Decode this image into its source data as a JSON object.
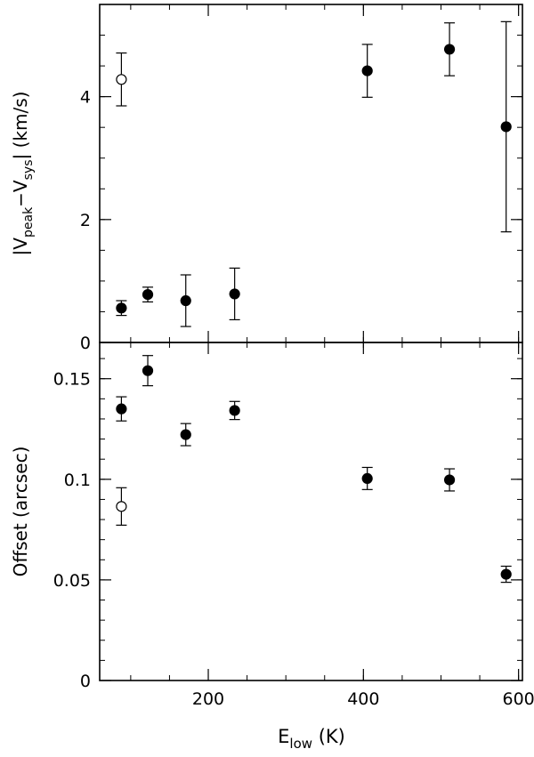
{
  "chart_data": [
    {
      "type": "scatter",
      "panel": "top",
      "xlabel": "",
      "ylabel_parts": {
        "pre": "|V",
        "sub1": "peak",
        "mid": "−V",
        "sub2": "sys",
        "post": "| (km/s)"
      },
      "xlim": [
        60,
        605
      ],
      "ylim": [
        0,
        5.5
      ],
      "yticks": [
        0,
        2,
        4
      ],
      "ytick_labels": [
        "0",
        "2",
        "4"
      ],
      "series": [
        {
          "marker": "filled-circle",
          "points": [
            {
              "x": 88,
              "y": 0.56,
              "err": 0.12
            },
            {
              "x": 122,
              "y": 0.78,
              "err": 0.12
            },
            {
              "x": 171,
              "y": 0.68,
              "err": 0.42
            },
            {
              "x": 234,
              "y": 0.79,
              "err": 0.42
            },
            {
              "x": 405,
              "y": 4.42,
              "err": 0.43
            },
            {
              "x": 511,
              "y": 4.77,
              "err": 0.43
            },
            {
              "x": 584,
              "y": 3.51,
              "err": 1.71
            }
          ]
        },
        {
          "marker": "open-circle",
          "points": [
            {
              "x": 88,
              "y": 4.28,
              "err": 0.43
            }
          ]
        }
      ]
    },
    {
      "type": "scatter",
      "panel": "bottom",
      "xlabel_parts": {
        "pre": "E",
        "sub": "low",
        "post": " (K)"
      },
      "ylabel": "Offset (arcsec)",
      "xlim": [
        60,
        605
      ],
      "ylim": [
        0,
        0.168
      ],
      "xticks": [
        200,
        400,
        600
      ],
      "xtick_labels": [
        "200",
        "400",
        "600"
      ],
      "yticks": [
        0,
        0.05,
        0.1,
        0.15
      ],
      "ytick_labels": [
        "0",
        "0.05",
        "0.1",
        "0.15"
      ],
      "series": [
        {
          "marker": "filled-circle",
          "points": [
            {
              "x": 88,
              "y": 0.135,
              "err": 0.006
            },
            {
              "x": 122,
              "y": 0.154,
              "err": 0.0075
            },
            {
              "x": 171,
              "y": 0.1222,
              "err": 0.0055
            },
            {
              "x": 234,
              "y": 0.1342,
              "err": 0.0045
            },
            {
              "x": 405,
              "y": 0.1004,
              "err": 0.0055
            },
            {
              "x": 511,
              "y": 0.0997,
              "err": 0.0055
            },
            {
              "x": 584,
              "y": 0.0528,
              "err": 0.004
            }
          ]
        },
        {
          "marker": "open-circle",
          "points": [
            {
              "x": 88,
              "y": 0.0865,
              "err": 0.0093
            }
          ]
        }
      ]
    }
  ]
}
